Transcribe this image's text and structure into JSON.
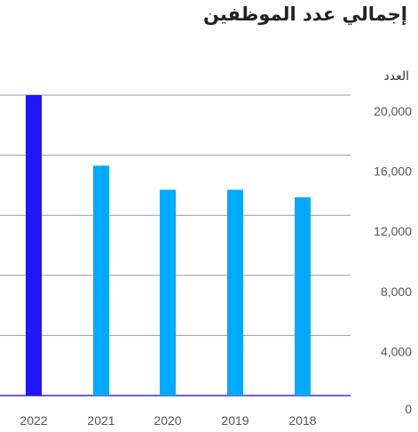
{
  "chart_data": {
    "type": "bar",
    "title": "إجمالي عدد الموظفين",
    "ylabel": "العدد",
    "xlabel": "",
    "categories": [
      "2022",
      "2021",
      "2020",
      "2019",
      "2018"
    ],
    "values": [
      20000,
      15300,
      13700,
      13700,
      13200
    ],
    "ylim": [
      0,
      20000
    ],
    "yticks": [
      "0",
      "4,000",
      "8,000",
      "12,000",
      "16,000",
      "20,000"
    ],
    "grid": true,
    "colors": {
      "highlight": "#2116f5",
      "bar": "#00aaff",
      "grid": "#9a9a9a",
      "baseline": "#3b2dd6"
    },
    "highlight_index": 0
  }
}
